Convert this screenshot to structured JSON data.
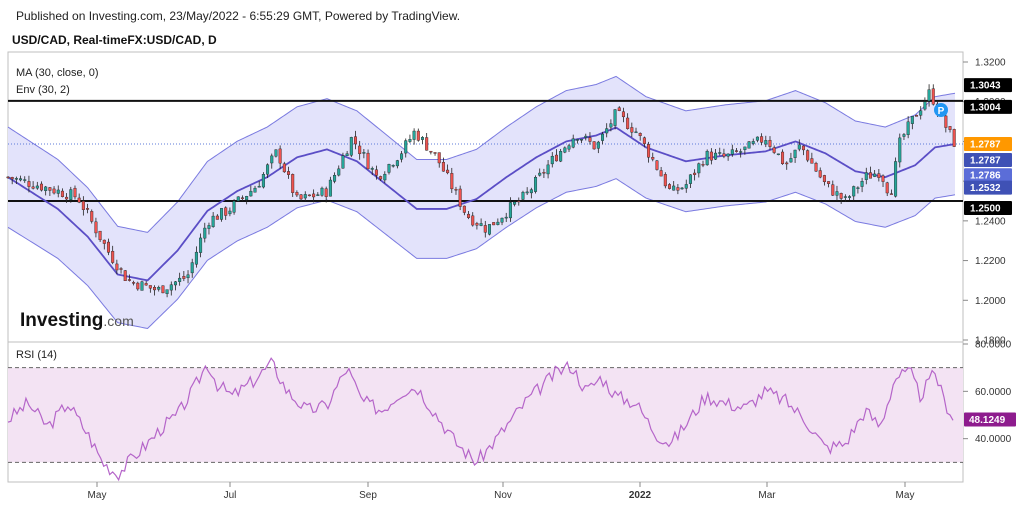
{
  "header": {
    "published": "Published on Investing.com, 23/May/2022 - 6:55:29 GMT, Powered by TradingView.",
    "symbol": "USD/CAD, Real-timeFX:USD/CAD, D"
  },
  "logo": {
    "text": "Investing",
    "suffix": ".com"
  },
  "colors": {
    "up": "#26a69a",
    "down": "#ef5350",
    "ma": "#5b4ec6",
    "env_fill": "#e3e3fb",
    "env_line": "#7a7ae0",
    "rsi_line": "#b565c9",
    "rsi_fill": "#f3e3f3",
    "last_price": "#ff9800",
    "rsi_tag": "#8e1c8e",
    "ma_tag": "#3f51b5",
    "dark": "#000000",
    "env_tag": "#5b6dd8"
  },
  "chart_data": [
    {
      "type": "candlestick",
      "title": "USD/CAD, Real-timeFX:USD/CAD, D",
      "indicators": [
        "MA (30, close, 0)",
        "Env (30, 2)"
      ],
      "ylim": [
        1.18,
        1.32
      ],
      "yticks": [
        "1.3200",
        "1.3000",
        "1.2800",
        "1.2600",
        "1.2400",
        "1.2200",
        "1.2000",
        "1.1800"
      ],
      "x_ticks": [
        "May",
        "Jul",
        "Sep",
        "Nov",
        "2022",
        "Mar",
        "May"
      ],
      "horizontal_lines": [
        1.3004,
        1.25
      ],
      "price_tags": [
        {
          "label": "1.3043",
          "value": 1.3043,
          "kind": "dark"
        },
        {
          "label": "1.3004",
          "value": 1.3004,
          "kind": "dark"
        },
        {
          "label": "1.2787",
          "value": 1.2787,
          "kind": "last"
        },
        {
          "label": "1.2787",
          "value": 1.2787,
          "kind": "ma"
        },
        {
          "label": "1.2786",
          "value": 1.2786,
          "kind": "ma2"
        },
        {
          "label": "1.2532",
          "value": 1.2532,
          "kind": "ma"
        },
        {
          "label": "1.2500",
          "value": 1.25,
          "kind": "dark"
        }
      ],
      "series": [
        {
          "name": "MA (30, close, 0)",
          "anchors": [
            [
              0,
              1.262
            ],
            [
              25,
              1.254
            ],
            [
              50,
              1.246
            ],
            [
              80,
              1.232
            ],
            [
              110,
              1.213
            ],
            [
              140,
              1.21
            ],
            [
              170,
              1.225
            ],
            [
              200,
              1.245
            ],
            [
              230,
              1.255
            ],
            [
              260,
              1.262
            ],
            [
              290,
              1.272
            ],
            [
              320,
              1.276
            ],
            [
              350,
              1.27
            ],
            [
              380,
              1.258
            ],
            [
              410,
              1.246
            ],
            [
              440,
              1.246
            ],
            [
              470,
              1.251
            ],
            [
              500,
              1.262
            ],
            [
              530,
              1.272
            ],
            [
              560,
              1.28
            ],
            [
              590,
              1.283
            ],
            [
              610,
              1.287
            ],
            [
              640,
              1.277
            ],
            [
              680,
              1.27
            ],
            [
              720,
              1.273
            ],
            [
              760,
              1.275
            ],
            [
              790,
              1.28
            ],
            [
              820,
              1.274
            ],
            [
              850,
              1.265
            ],
            [
              880,
              1.262
            ],
            [
              910,
              1.268
            ],
            [
              930,
              1.277
            ],
            [
              950,
              1.2787
            ]
          ]
        },
        {
          "name": "Env (30, 2)",
          "note": "upper and lower bands at MA ±2%"
        },
        {
          "name": "USD/CAD",
          "approx_close_path": [
            [
              0,
              1.262
            ],
            [
              30,
              1.258
            ],
            [
              70,
              1.252
            ],
            [
              100,
              1.225
            ],
            [
              120,
              1.21
            ],
            [
              150,
              1.205
            ],
            [
              180,
              1.212
            ],
            [
              200,
              1.24
            ],
            [
              220,
              1.245
            ],
            [
              250,
              1.258
            ],
            [
              270,
              1.275
            ],
            [
              290,
              1.25
            ],
            [
              320,
              1.255
            ],
            [
              345,
              1.282
            ],
            [
              370,
              1.262
            ],
            [
              395,
              1.275
            ],
            [
              408,
              1.285
            ],
            [
              430,
              1.272
            ],
            [
              460,
              1.243
            ],
            [
              480,
              1.236
            ],
            [
              505,
              1.247
            ],
            [
              520,
              1.253
            ],
            [
              545,
              1.27
            ],
            [
              570,
              1.284
            ],
            [
              590,
              1.277
            ],
            [
              610,
              1.294
            ],
            [
              630,
              1.285
            ],
            [
              650,
              1.268
            ],
            [
              665,
              1.254
            ],
            [
              680,
              1.258
            ],
            [
              700,
              1.273
            ],
            [
              720,
              1.272
            ],
            [
              740,
              1.276
            ],
            [
              760,
              1.282
            ],
            [
              780,
              1.268
            ],
            [
              795,
              1.278
            ],
            [
              820,
              1.258
            ],
            [
              840,
              1.25
            ],
            [
              860,
              1.262
            ],
            [
              875,
              1.265
            ],
            [
              885,
              1.253
            ],
            [
              895,
              1.28
            ],
            [
              910,
              1.293
            ],
            [
              925,
              1.305
            ],
            [
              935,
              1.293
            ],
            [
              950,
              1.2787
            ]
          ]
        }
      ]
    },
    {
      "type": "line",
      "title": "RSI (14)",
      "ylim": [
        20,
        80
      ],
      "yticks": [
        "80.0000",
        "60.0000",
        "40.0000"
      ],
      "bands": [
        70,
        30
      ],
      "last_value": "48.1249",
      "series": [
        {
          "name": "RSI (14)",
          "values": [
            [
              0,
              48
            ],
            [
              20,
              55
            ],
            [
              40,
              45
            ],
            [
              60,
              55
            ],
            [
              80,
              42
            ],
            [
              95,
              30
            ],
            [
              110,
              25
            ],
            [
              125,
              32
            ],
            [
              140,
              38
            ],
            [
              155,
              45
            ],
            [
              170,
              50
            ],
            [
              185,
              60
            ],
            [
              200,
              72
            ],
            [
              210,
              63
            ],
            [
              225,
              58
            ],
            [
              245,
              64
            ],
            [
              265,
              72
            ],
            [
              280,
              60
            ],
            [
              300,
              52
            ],
            [
              320,
              54
            ],
            [
              340,
              70
            ],
            [
              355,
              56
            ],
            [
              375,
              52
            ],
            [
              395,
              60
            ],
            [
              410,
              62
            ],
            [
              430,
              50
            ],
            [
              450,
              38
            ],
            [
              470,
              30
            ],
            [
              490,
              40
            ],
            [
              505,
              48
            ],
            [
              520,
              56
            ],
            [
              535,
              62
            ],
            [
              550,
              68
            ],
            [
              565,
              71
            ],
            [
              580,
              60
            ],
            [
              595,
              66
            ],
            [
              610,
              58
            ],
            [
              630,
              55
            ],
            [
              650,
              42
            ],
            [
              665,
              38
            ],
            [
              680,
              46
            ],
            [
              700,
              58
            ],
            [
              720,
              55
            ],
            [
              740,
              53
            ],
            [
              760,
              60
            ],
            [
              780,
              56
            ],
            [
              800,
              48
            ],
            [
              820,
              36
            ],
            [
              840,
              38
            ],
            [
              860,
              52
            ],
            [
              875,
              45
            ],
            [
              890,
              66
            ],
            [
              905,
              68
            ],
            [
              915,
              58
            ],
            [
              930,
              68
            ],
            [
              940,
              55
            ],
            [
              950,
              48
            ]
          ]
        }
      ]
    }
  ]
}
